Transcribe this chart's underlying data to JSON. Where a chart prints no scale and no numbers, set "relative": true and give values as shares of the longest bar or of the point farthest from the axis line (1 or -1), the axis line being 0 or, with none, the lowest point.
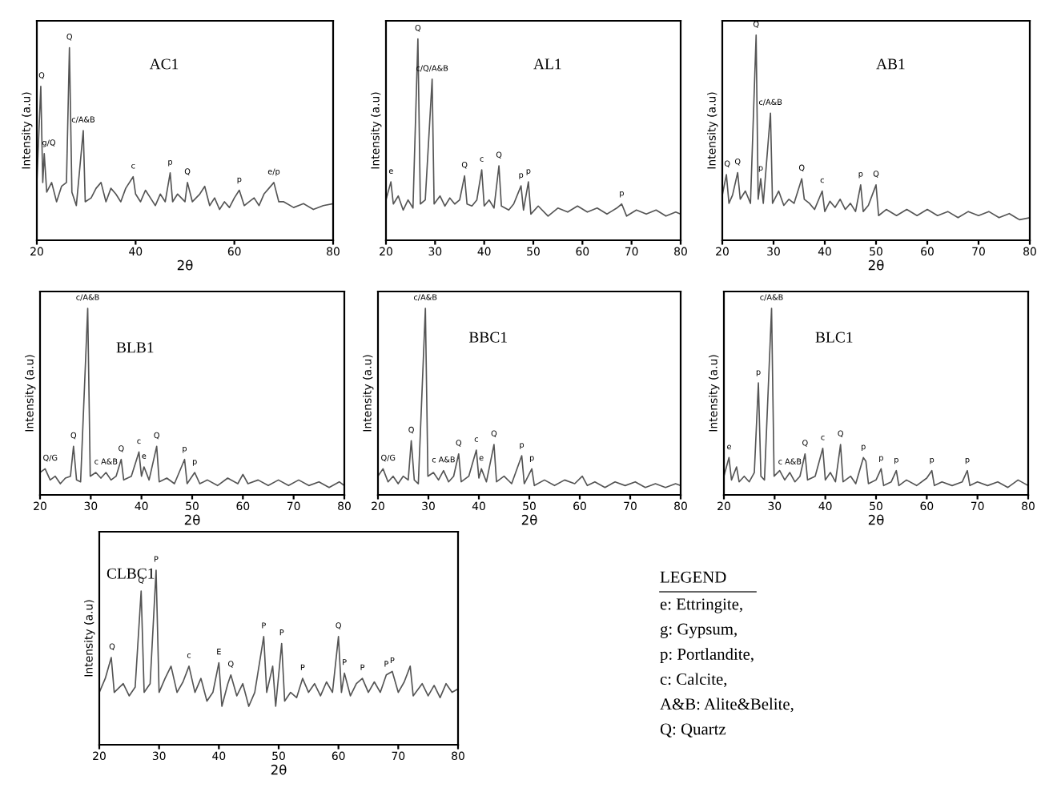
{
  "chart_data": [
    {
      "type": "line",
      "title": "AC1",
      "xlabel": "2θ",
      "ylabel": "Intensity (a.u)",
      "relative": true,
      "xlim": [
        20,
        80
      ],
      "xticks": [
        20,
        40,
        60,
        80
      ],
      "tick_labels": "x",
      "x": [
        20,
        20.8,
        21.2,
        21.5,
        22,
        23,
        24,
        25,
        26,
        26.6,
        27.1,
        28,
        29.4,
        29.8,
        31,
        32,
        33,
        34,
        35,
        36,
        37,
        38,
        39.5,
        40,
        41,
        42,
        43,
        44,
        45,
        46,
        47,
        47.5,
        48.5,
        50,
        50.5,
        51.5,
        53,
        54,
        55,
        56,
        57,
        58,
        59,
        60,
        61,
        62,
        63,
        64,
        65,
        66,
        67,
        68,
        69,
        70,
        72,
        74,
        76,
        78,
        80
      ],
      "series": [
        {
          "color": "#555555",
          "values": [
            0.3,
            0.8,
            0.3,
            0.45,
            0.25,
            0.3,
            0.2,
            0.28,
            0.3,
            1.0,
            0.25,
            0.18,
            0.57,
            0.2,
            0.22,
            0.27,
            0.3,
            0.2,
            0.27,
            0.24,
            0.2,
            0.27,
            0.33,
            0.24,
            0.2,
            0.26,
            0.22,
            0.18,
            0.24,
            0.2,
            0.35,
            0.2,
            0.24,
            0.2,
            0.3,
            0.2,
            0.24,
            0.28,
            0.18,
            0.22,
            0.16,
            0.2,
            0.17,
            0.22,
            0.26,
            0.18,
            0.2,
            0.22,
            0.18,
            0.24,
            0.27,
            0.3,
            0.2,
            0.2,
            0.17,
            0.19,
            0.16,
            0.18,
            0.19
          ]
        }
      ],
      "annotations": [
        {
          "text": "Q",
          "x": 20.8,
          "y": 0.8
        },
        {
          "text": "g/Q",
          "x": 21.5,
          "y": 0.45
        },
        {
          "text": "Q",
          "x": 26.6,
          "y": 1.0
        },
        {
          "text": "c/A&B",
          "x": 29.4,
          "y": 0.57
        },
        {
          "text": "c",
          "x": 39.5,
          "y": 0.33
        },
        {
          "text": "p",
          "x": 47,
          "y": 0.35
        },
        {
          "text": "Q",
          "x": 50.5,
          "y": 0.3
        },
        {
          "text": "p",
          "x": 61,
          "y": 0.26
        },
        {
          "text": "e/p",
          "x": 68,
          "y": 0.3
        }
      ]
    },
    {
      "type": "line",
      "title": "AL1",
      "ylabel": "Intensity (a.u)",
      "relative": true,
      "xlim": [
        20,
        80
      ],
      "xticks": [
        20,
        30,
        40,
        50,
        60,
        70,
        80
      ],
      "tick_labels": "x",
      "x": [
        20,
        21,
        21.5,
        22.5,
        23.5,
        24.5,
        25.5,
        26.5,
        27,
        28,
        29.4,
        29.8,
        31,
        32,
        33,
        34,
        35,
        36,
        36.5,
        37.5,
        38.5,
        39.5,
        40,
        41,
        42,
        43,
        43.5,
        45,
        46,
        47.5,
        48,
        49,
        49.5,
        51,
        53,
        55,
        57,
        59,
        61,
        63,
        65,
        67,
        68,
        69,
        71,
        73,
        75,
        77,
        79,
        80
      ],
      "series": [
        {
          "color": "#555555",
          "values": [
            0.2,
            0.29,
            0.18,
            0.22,
            0.15,
            0.2,
            0.16,
            1.0,
            0.18,
            0.2,
            0.8,
            0.18,
            0.22,
            0.17,
            0.21,
            0.18,
            0.2,
            0.32,
            0.18,
            0.17,
            0.2,
            0.35,
            0.17,
            0.2,
            0.16,
            0.37,
            0.17,
            0.15,
            0.18,
            0.27,
            0.15,
            0.29,
            0.13,
            0.17,
            0.12,
            0.16,
            0.14,
            0.17,
            0.14,
            0.16,
            0.13,
            0.16,
            0.18,
            0.12,
            0.15,
            0.13,
            0.15,
            0.12,
            0.14,
            0.13
          ]
        }
      ],
      "annotations": [
        {
          "text": "e",
          "x": 21,
          "y": 0.29
        },
        {
          "text": "Q",
          "x": 26.5,
          "y": 1.0
        },
        {
          "text": "c/Q/A&B",
          "x": 29.4,
          "y": 0.8
        },
        {
          "text": "Q",
          "x": 36,
          "y": 0.32
        },
        {
          "text": "c",
          "x": 39.5,
          "y": 0.35
        },
        {
          "text": "Q",
          "x": 43,
          "y": 0.37
        },
        {
          "text": "p",
          "x": 47.5,
          "y": 0.27
        },
        {
          "text": "p",
          "x": 49,
          "y": 0.29
        },
        {
          "text": "p",
          "x": 68,
          "y": 0.18
        }
      ]
    },
    {
      "type": "line",
      "title": "AB1",
      "xlabel": "2θ",
      "ylabel": "Intensity (a.u)",
      "relative": true,
      "xlim": [
        20,
        80
      ],
      "xticks": [
        20,
        30,
        40,
        50,
        60,
        70,
        80
      ],
      "tick_labels": "x",
      "x": [
        20,
        20.8,
        21.3,
        22,
        23,
        23.5,
        24.5,
        25.5,
        26.6,
        27,
        27.5,
        28,
        29.4,
        29.8,
        31,
        32,
        33,
        34,
        35.5,
        36,
        37,
        38,
        39.5,
        40,
        41,
        42,
        43,
        44,
        45,
        46,
        47,
        47.5,
        48.5,
        50,
        50.5,
        52,
        54,
        56,
        58,
        60,
        62,
        64,
        66,
        68,
        70,
        72,
        74,
        76,
        78,
        80
      ],
      "series": [
        {
          "color": "#555555",
          "values": [
            0.22,
            0.32,
            0.18,
            0.22,
            0.33,
            0.2,
            0.24,
            0.18,
            1.0,
            0.2,
            0.3,
            0.18,
            0.62,
            0.18,
            0.24,
            0.17,
            0.2,
            0.18,
            0.3,
            0.2,
            0.18,
            0.15,
            0.24,
            0.14,
            0.19,
            0.16,
            0.2,
            0.15,
            0.18,
            0.14,
            0.27,
            0.14,
            0.17,
            0.27,
            0.12,
            0.15,
            0.12,
            0.15,
            0.12,
            0.15,
            0.12,
            0.14,
            0.11,
            0.14,
            0.12,
            0.14,
            0.11,
            0.13,
            0.1,
            0.11
          ]
        }
      ],
      "annotations": [
        {
          "text": "Q",
          "x": 20.8,
          "y": 0.32
        },
        {
          "text": "Q",
          "x": 23,
          "y": 0.33
        },
        {
          "text": "Q",
          "x": 26.6,
          "y": 1.0
        },
        {
          "text": "p",
          "x": 27.5,
          "y": 0.3
        },
        {
          "text": "c/A&B",
          "x": 29.4,
          "y": 0.62
        },
        {
          "text": "Q",
          "x": 35.5,
          "y": 0.3
        },
        {
          "text": "c",
          "x": 39.5,
          "y": 0.24
        },
        {
          "text": "p",
          "x": 47,
          "y": 0.27
        },
        {
          "text": "Q",
          "x": 50,
          "y": 0.27
        }
      ]
    },
    {
      "type": "line",
      "title": "BLB1",
      "xlabel": "2θ",
      "ylabel": "Intensity (a.u)",
      "relative": true,
      "xlim": [
        20,
        80
      ],
      "xticks": [
        20,
        30,
        40,
        50,
        60,
        70,
        80
      ],
      "tick_labels": "x",
      "x": [
        20,
        21,
        22,
        23,
        24,
        25,
        26,
        26.6,
        27.2,
        28,
        29.4,
        29.9,
        31,
        32,
        33,
        34,
        35,
        36,
        36.5,
        38,
        39.5,
        40,
        40.5,
        41.5,
        43,
        43.5,
        45,
        46.5,
        48.5,
        49,
        50.5,
        51.5,
        53,
        55,
        57,
        59,
        60,
        61,
        63,
        65,
        67,
        69,
        71,
        73,
        75,
        77,
        79,
        80
      ],
      "series": [
        {
          "color": "#555555",
          "values": [
            0.12,
            0.14,
            0.08,
            0.1,
            0.06,
            0.09,
            0.1,
            0.26,
            0.08,
            0.07,
            1.0,
            0.1,
            0.12,
            0.09,
            0.12,
            0.08,
            0.1,
            0.19,
            0.08,
            0.1,
            0.23,
            0.1,
            0.15,
            0.08,
            0.26,
            0.07,
            0.09,
            0.06,
            0.19,
            0.06,
            0.12,
            0.06,
            0.08,
            0.05,
            0.09,
            0.06,
            0.11,
            0.06,
            0.08,
            0.05,
            0.08,
            0.05,
            0.08,
            0.05,
            0.07,
            0.04,
            0.07,
            0.05
          ]
        }
      ],
      "annotations": [
        {
          "text": "Q/G",
          "x": 21,
          "y": 0.14
        },
        {
          "text": "Q",
          "x": 26.6,
          "y": 0.26
        },
        {
          "text": "c/A&B",
          "x": 29.4,
          "y": 1.0
        },
        {
          "text": "c A&B",
          "x": 33,
          "y": 0.12
        },
        {
          "text": "Q",
          "x": 36,
          "y": 0.19
        },
        {
          "text": "c",
          "x": 39.5,
          "y": 0.23
        },
        {
          "text": "e",
          "x": 40.5,
          "y": 0.15
        },
        {
          "text": "Q",
          "x": 43,
          "y": 0.26
        },
        {
          "text": "p",
          "x": 48.5,
          "y": 0.19
        },
        {
          "text": "p",
          "x": 50.5,
          "y": 0.12
        }
      ]
    },
    {
      "type": "line",
      "title": "BBC1",
      "xlabel": "2θ",
      "ylabel": "Intensity (a.u)",
      "relative": true,
      "xlim": [
        20,
        80
      ],
      "xticks": [
        20,
        30,
        40,
        50,
        60,
        70,
        80
      ],
      "tick_labels": "x",
      "x": [
        20,
        21,
        22,
        23,
        24,
        25,
        26,
        26.6,
        27.2,
        28,
        29.4,
        29.9,
        31,
        32,
        33,
        34,
        35,
        36,
        36.5,
        38,
        39.5,
        40,
        40.5,
        41.5,
        43,
        43.5,
        45,
        46.5,
        48.5,
        49,
        50.5,
        51,
        53,
        55,
        57,
        59,
        60.5,
        61.5,
        63,
        65,
        67,
        69,
        71,
        73,
        75,
        77,
        79,
        80
      ],
      "series": [
        {
          "color": "#555555",
          "values": [
            0.1,
            0.14,
            0.07,
            0.1,
            0.06,
            0.1,
            0.08,
            0.29,
            0.08,
            0.06,
            1.0,
            0.1,
            0.12,
            0.08,
            0.13,
            0.07,
            0.1,
            0.22,
            0.07,
            0.1,
            0.24,
            0.09,
            0.14,
            0.07,
            0.27,
            0.07,
            0.1,
            0.06,
            0.21,
            0.06,
            0.14,
            0.05,
            0.08,
            0.05,
            0.08,
            0.06,
            0.1,
            0.05,
            0.07,
            0.04,
            0.07,
            0.05,
            0.07,
            0.04,
            0.06,
            0.04,
            0.06,
            0.05
          ]
        }
      ],
      "annotations": [
        {
          "text": "Q/G",
          "x": 21,
          "y": 0.14
        },
        {
          "text": "Q",
          "x": 26.6,
          "y": 0.29
        },
        {
          "text": "c/A&B",
          "x": 29.4,
          "y": 1.0
        },
        {
          "text": "c A&B",
          "x": 33,
          "y": 0.13
        },
        {
          "text": "Q",
          "x": 36,
          "y": 0.22
        },
        {
          "text": "c",
          "x": 39.5,
          "y": 0.24
        },
        {
          "text": "e",
          "x": 40.5,
          "y": 0.14
        },
        {
          "text": "Q",
          "x": 43,
          "y": 0.27
        },
        {
          "text": "p",
          "x": 48.5,
          "y": 0.21
        },
        {
          "text": "p",
          "x": 50.5,
          "y": 0.14
        }
      ]
    },
    {
      "type": "line",
      "title": "BLC1",
      "xlabel": "2θ",
      "ylabel": "Intensity (a.u)",
      "relative": true,
      "xlim": [
        20,
        80
      ],
      "xticks": [
        20,
        30,
        40,
        50,
        60,
        70,
        80
      ],
      "tick_labels": "x",
      "x": [
        20,
        21,
        21.5,
        22.5,
        23,
        24,
        25,
        26,
        26.8,
        27.3,
        28,
        29.4,
        29.9,
        31,
        32,
        33,
        34,
        35,
        36,
        36.5,
        38,
        39.5,
        40,
        41,
        42,
        43,
        43.5,
        45,
        46,
        47.5,
        48,
        48.5,
        50,
        51,
        51.5,
        53,
        54,
        54.5,
        56,
        58,
        60,
        61,
        61.5,
        63,
        65,
        67,
        68,
        68.5,
        70,
        72,
        74,
        76,
        78,
        80
      ],
      "series": [
        {
          "color": "#555555",
          "values": [
            0.1,
            0.2,
            0.08,
            0.15,
            0.07,
            0.1,
            0.07,
            0.12,
            0.6,
            0.1,
            0.08,
            1.0,
            0.1,
            0.13,
            0.08,
            0.12,
            0.07,
            0.1,
            0.22,
            0.08,
            0.1,
            0.25,
            0.08,
            0.12,
            0.07,
            0.27,
            0.07,
            0.1,
            0.06,
            0.2,
            0.18,
            0.06,
            0.08,
            0.14,
            0.05,
            0.07,
            0.13,
            0.05,
            0.08,
            0.05,
            0.09,
            0.13,
            0.05,
            0.07,
            0.05,
            0.07,
            0.13,
            0.05,
            0.07,
            0.05,
            0.07,
            0.04,
            0.08,
            0.05
          ]
        }
      ],
      "annotations": [
        {
          "text": "e",
          "x": 21,
          "y": 0.2
        },
        {
          "text": "p",
          "x": 26.8,
          "y": 0.6
        },
        {
          "text": "c/A&B",
          "x": 29.4,
          "y": 1.0
        },
        {
          "text": "c A&B",
          "x": 33,
          "y": 0.12
        },
        {
          "text": "Q",
          "x": 36,
          "y": 0.22
        },
        {
          "text": "c",
          "x": 39.5,
          "y": 0.25
        },
        {
          "text": "Q",
          "x": 43,
          "y": 0.27
        },
        {
          "text": "p",
          "x": 47.5,
          "y": 0.2
        },
        {
          "text": "p",
          "x": 51,
          "y": 0.14
        },
        {
          "text": "p",
          "x": 54,
          "y": 0.13
        },
        {
          "text": "p",
          "x": 61,
          "y": 0.13
        },
        {
          "text": "p",
          "x": 68,
          "y": 0.13
        }
      ]
    },
    {
      "type": "line",
      "title": "CLBC1",
      "xlabel": "2θ",
      "ylabel": "Intensity (a.u)",
      "relative": true,
      "xlim": [
        20,
        80
      ],
      "xticks": [
        20,
        30,
        40,
        50,
        60,
        70,
        80
      ],
      "tick_labels": "x",
      "x": [
        20,
        21,
        22,
        22.5,
        24,
        25,
        26,
        27,
        27.5,
        28.5,
        29.5,
        30,
        31,
        32,
        33,
        34,
        35,
        36,
        37,
        38,
        39,
        40,
        40.5,
        41.5,
        42,
        43,
        44,
        45,
        46,
        47.5,
        48,
        49,
        49.5,
        50.5,
        51,
        52,
        53,
        54,
        55,
        56,
        57,
        58,
        59,
        60,
        60.5,
        61,
        62,
        63,
        64,
        65,
        66,
        67,
        68,
        69,
        70,
        71,
        72,
        72.5,
        74,
        75,
        76,
        77,
        78,
        79,
        80
      ],
      "series": [
        {
          "color": "#555555",
          "values": [
            0.3,
            0.38,
            0.5,
            0.3,
            0.35,
            0.28,
            0.33,
            0.88,
            0.3,
            0.35,
            1.0,
            0.3,
            0.38,
            0.45,
            0.3,
            0.36,
            0.45,
            0.3,
            0.38,
            0.25,
            0.3,
            0.47,
            0.22,
            0.35,
            0.4,
            0.28,
            0.35,
            0.22,
            0.3,
            0.62,
            0.3,
            0.45,
            0.22,
            0.58,
            0.25,
            0.3,
            0.27,
            0.38,
            0.3,
            0.35,
            0.28,
            0.36,
            0.3,
            0.62,
            0.3,
            0.41,
            0.28,
            0.35,
            0.38,
            0.3,
            0.36,
            0.3,
            0.4,
            0.42,
            0.3,
            0.36,
            0.45,
            0.28,
            0.35,
            0.28,
            0.34,
            0.27,
            0.35,
            0.3,
            0.32
          ]
        }
      ],
      "annotations": [
        {
          "text": "Q",
          "x": 22,
          "y": 0.5
        },
        {
          "text": "Q",
          "x": 27,
          "y": 0.88
        },
        {
          "text": "P",
          "x": 29.5,
          "y": 1.0
        },
        {
          "text": "c",
          "x": 35,
          "y": 0.45
        },
        {
          "text": "E",
          "x": 40,
          "y": 0.47
        },
        {
          "text": "Q",
          "x": 42,
          "y": 0.4
        },
        {
          "text": "P",
          "x": 47.5,
          "y": 0.62
        },
        {
          "text": "P",
          "x": 50.5,
          "y": 0.58
        },
        {
          "text": "P",
          "x": 54,
          "y": 0.38
        },
        {
          "text": "Q",
          "x": 60,
          "y": 0.62
        },
        {
          "text": "P",
          "x": 61,
          "y": 0.41
        },
        {
          "text": "P",
          "x": 64,
          "y": 0.38
        },
        {
          "text": "P",
          "x": 68,
          "y": 0.4
        },
        {
          "text": "P",
          "x": 69,
          "y": 0.42
        }
      ]
    },
    {
      "type": "other",
      "title": "LEGEND",
      "annotations": [
        "e: Ettringite,",
        "g: Gypsum,",
        "p: Portlandite,",
        "c: Calcite,",
        "A&B: Alite&Belite,",
        "Q: Quartz"
      ]
    }
  ]
}
